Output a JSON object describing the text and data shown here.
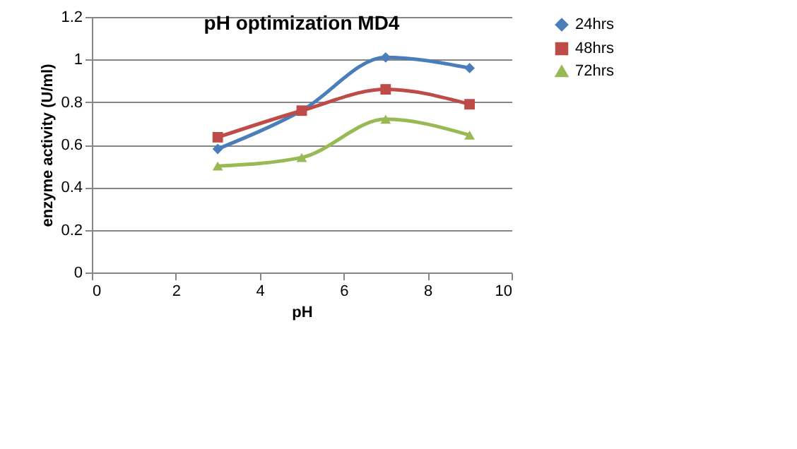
{
  "chart_data": {
    "type": "line",
    "title": "pH optimization MD4",
    "xlabel": "pH",
    "ylabel": "enzyme activity (U/ml)",
    "x": [
      3,
      5,
      7,
      9
    ],
    "series": [
      {
        "name": "24hrs",
        "color": "#4a7ebb",
        "values": [
          0.58,
          0.76,
          1.01,
          0.96
        ],
        "marker": "diamond"
      },
      {
        "name": "48hrs",
        "color": "#be4b48",
        "values": [
          0.635,
          0.76,
          0.86,
          0.79
        ],
        "marker": "square"
      },
      {
        "name": "72hrs",
        "color": "#98b954",
        "values": [
          0.5,
          0.54,
          0.72,
          0.645
        ],
        "marker": "triangle"
      }
    ],
    "xlim": [
      0,
      10
    ],
    "xticks": [
      0,
      2,
      4,
      6,
      8,
      10
    ],
    "ylim": [
      0,
      1.2
    ],
    "yticks": [
      0,
      0.2,
      0.4,
      0.6,
      0.8,
      1,
      1.2
    ],
    "grid": "y",
    "legend": "right",
    "line_style": "solid"
  }
}
